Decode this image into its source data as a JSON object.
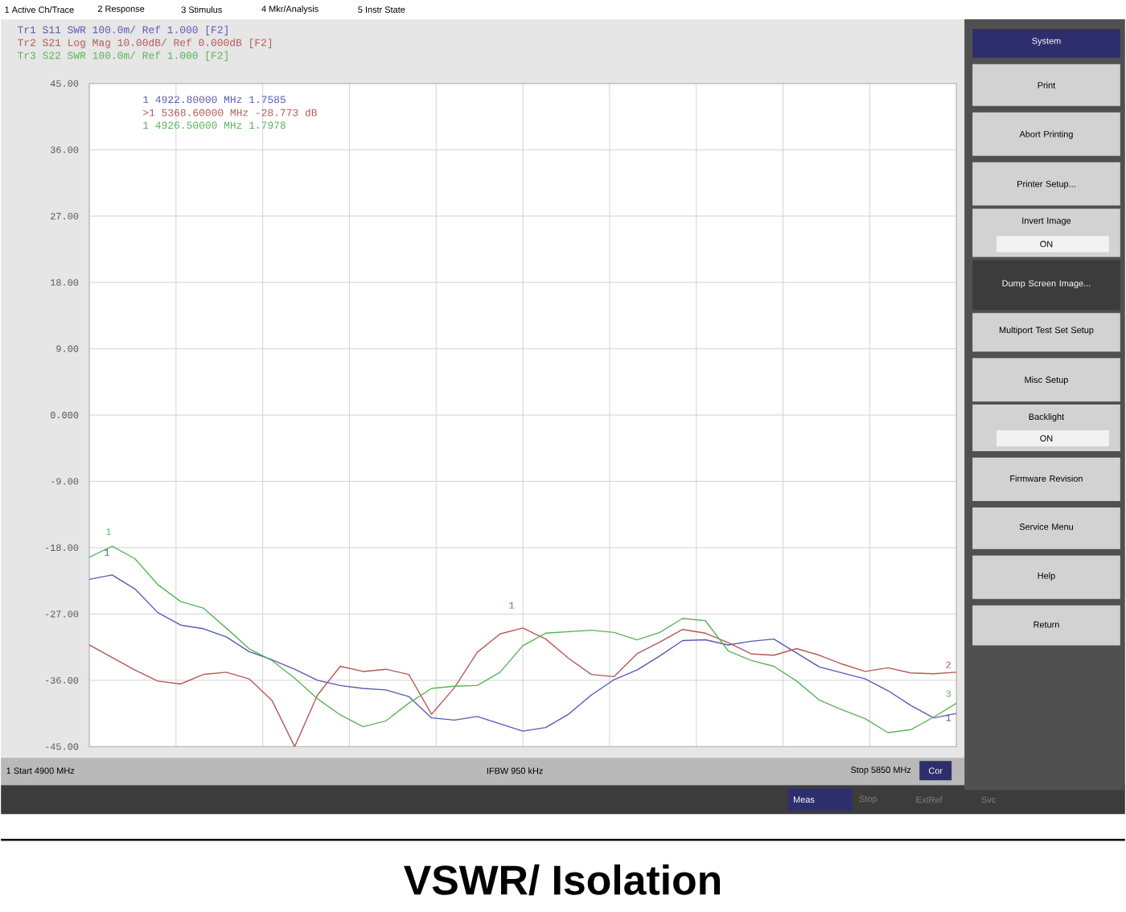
{
  "chart_data": {
    "type": "line",
    "title": "VSWR/ Isolation",
    "categories": [
      null,
      null,
      null,
      null,
      null,
      null,
      null,
      null,
      null,
      null,
      null,
      null,
      null,
      null,
      null,
      null,
      null,
      null,
      null,
      null,
      null,
      null,
      null,
      null,
      null,
      null,
      null,
      null,
      null,
      null,
      null,
      null,
      null,
      null,
      null,
      null,
      null,
      null,
      null
    ],
    "ylim": [
      -45,
      45
    ],
    "yticks": [
      {
        "value": 45,
        "label": "45.00"
      },
      {
        "value": 36,
        "label": "36.00"
      },
      {
        "value": 27,
        "label": "27.00"
      },
      {
        "value": 18,
        "label": "18.00"
      },
      {
        "value": 9,
        "label": "9.00"
      },
      {
        "value": 0,
        "label": "0.000"
      },
      {
        "value": -9,
        "label": "-9.00"
      },
      {
        "value": -18,
        "label": "-18.00"
      },
      {
        "value": -27,
        "label": "-27.00"
      },
      {
        "value": -36,
        "label": "-36.00"
      },
      {
        "value": -45,
        "label": "-45.00"
      }
    ],
    "tick_labels": "y",
    "grid": true,
    "series": [
      {
        "name": "Tr1 S11 SWR 100.0m/ Ref 1.000 [F2]",
        "color": "#5a5ab4",
        "values": [
          -22.3,
          -21.7,
          -23.6,
          -26.8,
          -28.5,
          -29.0,
          -30.1,
          -32.1,
          -33.2,
          -34.5,
          -36.0,
          -36.7,
          -37.1,
          -37.3,
          -38.2,
          -41.1,
          -41.4,
          -40.9,
          -41.9,
          -42.9,
          -42.4,
          -40.6,
          -38.0,
          -35.9,
          -34.6,
          -32.7,
          -30.6,
          -30.5,
          -31.2,
          -30.7,
          -30.4,
          -32.3,
          -34.2,
          -35.0,
          -35.8,
          -37.4,
          -39.4,
          -41.1,
          -40.5
        ]
      },
      {
        "name": "Tr2 S21 Log Mag 10.00dB/ Ref 0.000dB [F2]",
        "color": "#b45a5a",
        "values": [
          -31.2,
          -32.9,
          -34.6,
          -36.1,
          -36.5,
          -35.2,
          -34.9,
          -35.8,
          -38.7,
          -45,
          -38.0,
          -34.1,
          -34.8,
          -34.5,
          -35.2,
          -40.6,
          -37.0,
          -32.2,
          -29.7,
          -28.9,
          -30.4,
          -33.0,
          -35.2,
          -35.5,
          -32.4,
          -30.8,
          -29.1,
          -29.6,
          -30.9,
          -32.4,
          -32.6,
          -31.7,
          -32.6,
          -33.8,
          -34.8,
          -34.3,
          -35.0,
          -35.1,
          -34.9
        ]
      },
      {
        "name": "Tr3 S22 SWR 100.0m/ Ref 1.000 [F2]",
        "color": "#5ab45a",
        "values": [
          -19.3,
          -17.8,
          -19.5,
          -23.0,
          -25.3,
          -26.2,
          -28.9,
          -31.7,
          -33.3,
          -35.7,
          -38.5,
          -40.7,
          -42.3,
          -41.5,
          -39.1,
          -37.1,
          -36.8,
          -36.7,
          -34.9,
          -31.3,
          -29.6,
          -29.4,
          -29.2,
          -29.5,
          -30.5,
          -29.5,
          -27.6,
          -27.9,
          -32.0,
          -33.3,
          -34.1,
          -36.1,
          -38.7,
          -40.0,
          -41.2,
          -43.1,
          -42.7,
          -41.0,
          -39.1
        ]
      }
    ],
    "annotations": [
      "1 Active Ch/Trace",
      "2 Response",
      "3 Stimulus",
      "4 Mkr/Analysis",
      "5 Instr State",
      "1  4922.80000 MHz  1.7585",
      ">1  5368.60000 MHz  -28.773 dB",
      "1  4926.50000 MHz  1.7978",
      "1 Start 4900 MHz",
      "IFBW 950 kHz",
      "Stop 5850 MHz",
      "Cor",
      "System",
      "Print",
      "Abort Printing",
      "Printer Setup...",
      "Invert Image",
      "ON",
      "Dump Screen Image...",
      "Multiport Test Set Setup",
      "Misc Setup",
      "Backlight",
      "ON",
      "Firmware Revision",
      "Service Menu",
      "Help",
      "Return",
      "Meas",
      "Stop",
      "ExtRef",
      "Svc",
      "1",
      "1",
      "1",
      "2",
      "3",
      "1"
    ]
  }
}
